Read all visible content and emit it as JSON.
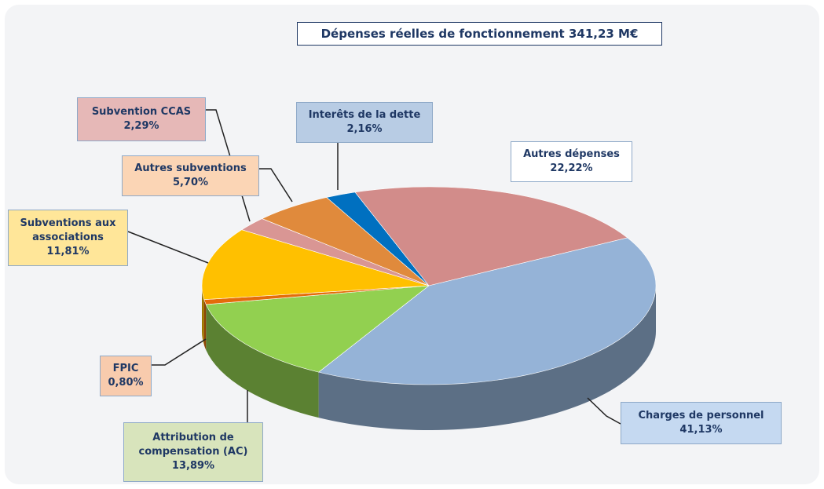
{
  "chart_data": {
    "type": "pie",
    "title": "Dépenses réelles de fonctionnement 341,23 M€",
    "categories": [
      "Autres dépenses",
      "Charges de personnel",
      "Attribution de compensation (AC)",
      "FPIC",
      "Subventions aux associations",
      "Subvention CCAS",
      "Autres subventions",
      "Interêts de la dette"
    ],
    "values": [
      22.22,
      41.13,
      13.89,
      0.8,
      11.81,
      2.29,
      5.7,
      2.16
    ],
    "value_labels": [
      "22,22%",
      "41,13%",
      "13,89%",
      "0,80%",
      "11,81%",
      "2,29%",
      "5,70%",
      "2,16%"
    ],
    "colors": [
      "#d28c8a",
      "#95b3d7",
      "#92d050",
      "#e46c0a",
      "#ffc000",
      "#d99694",
      "#e08a3c",
      "#0070c0"
    ]
  }
}
